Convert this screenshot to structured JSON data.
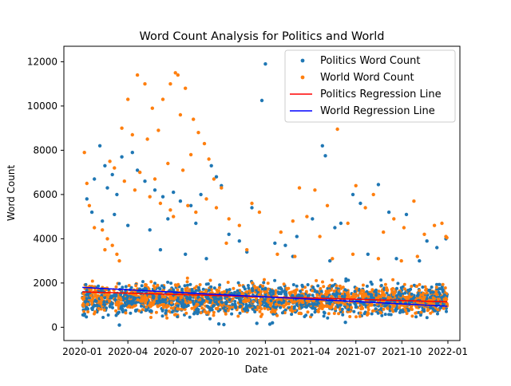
{
  "chart_data": {
    "type": "scatter",
    "title": "Word Count Analysis for Politics and World",
    "xlabel": "Date",
    "ylabel": "Word Count",
    "x_range": [
      "2019-11-25",
      "2022-01-25"
    ],
    "ylim": [
      -600,
      12700
    ],
    "x_tick_labels": [
      "2020-01",
      "2020-04",
      "2020-07",
      "2020-10",
      "2021-01",
      "2021-04",
      "2021-07",
      "2021-10",
      "2022-01"
    ],
    "x_tick_dates": [
      "2020-01-01",
      "2020-04-01",
      "2020-07-01",
      "2020-10-01",
      "2021-01-01",
      "2021-04-01",
      "2021-07-01",
      "2021-10-01",
      "2022-01-01"
    ],
    "y_ticks": [
      0,
      2000,
      4000,
      6000,
      8000,
      10000,
      12000
    ],
    "legend_position": "top-right",
    "colors": {
      "politics_points": "#1f77b4",
      "world_points": "#ff7f0e",
      "politics_regression": "#ff0000",
      "world_regression": "#0000ff"
    },
    "point_series": [
      {
        "name": "Politics Word Count",
        "color": "#1f77b4",
        "points": [
          [
            "2021-01-01",
            11900
          ],
          [
            "2020-12-25",
            10250
          ],
          [
            "2021-04-25",
            8200
          ],
          [
            "2021-05-01",
            7750
          ],
          [
            "2020-02-05",
            8200
          ],
          [
            "2020-03-20",
            7700
          ],
          [
            "2020-04-10",
            7900
          ],
          [
            "2020-02-15",
            7300
          ],
          [
            "2020-03-01",
            6900
          ],
          [
            "2020-01-25",
            6700
          ],
          [
            "2020-02-20",
            6300
          ],
          [
            "2020-03-10",
            6000
          ],
          [
            "2020-04-20",
            7100
          ],
          [
            "2020-05-05",
            6600
          ],
          [
            "2020-05-25",
            6200
          ],
          [
            "2020-06-10",
            5900
          ],
          [
            "2020-07-01",
            6100
          ],
          [
            "2020-07-15",
            5700
          ],
          [
            "2020-08-05",
            5500
          ],
          [
            "2020-08-25",
            6000
          ],
          [
            "2020-09-15",
            7300
          ],
          [
            "2020-09-25",
            6800
          ],
          [
            "2020-10-05",
            6400
          ],
          [
            "2020-01-10",
            5800
          ],
          [
            "2020-01-20",
            5200
          ],
          [
            "2020-02-10",
            4800
          ],
          [
            "2020-03-05",
            5100
          ],
          [
            "2020-04-01",
            4600
          ],
          [
            "2020-05-15",
            4400
          ],
          [
            "2020-06-20",
            4900
          ],
          [
            "2020-08-15",
            4700
          ],
          [
            "2020-10-20",
            4200
          ],
          [
            "2020-11-10",
            3900
          ],
          [
            "2020-12-05",
            5400
          ],
          [
            "2021-01-20",
            3800
          ],
          [
            "2021-02-10",
            3700
          ],
          [
            "2021-03-05",
            4100
          ],
          [
            "2021-06-01",
            4700
          ],
          [
            "2021-06-25",
            6000
          ],
          [
            "2021-07-10",
            5600
          ],
          [
            "2021-08-15",
            6450
          ],
          [
            "2021-09-05",
            5200
          ],
          [
            "2021-10-10",
            5100
          ],
          [
            "2021-11-20",
            3900
          ],
          [
            "2021-12-10",
            3600
          ],
          [
            "2021-12-28",
            4000
          ],
          [
            "2021-04-05",
            4900
          ],
          [
            "2021-05-20",
            4500
          ],
          [
            "2020-06-05",
            3500
          ],
          [
            "2020-07-25",
            3300
          ],
          [
            "2020-09-05",
            3100
          ],
          [
            "2020-11-25",
            3400
          ],
          [
            "2021-02-25",
            3200
          ],
          [
            "2021-05-10",
            3000
          ],
          [
            "2021-07-25",
            3300
          ],
          [
            "2021-09-20",
            3100
          ],
          [
            "2021-11-05",
            3000
          ],
          [
            "2020-03-15",
            100
          ],
          [
            "2020-09-30",
            150
          ],
          [
            "2020-10-10",
            120
          ],
          [
            "2021-01-10",
            140
          ],
          [
            "2021-01-15",
            200
          ],
          [
            "2021-06-10",
            220
          ],
          [
            "2020-12-15",
            180
          ]
        ]
      },
      {
        "name": "World Word Count",
        "color": "#ff7f0e",
        "points": [
          [
            "2020-04-20",
            11400
          ],
          [
            "2020-05-05",
            11000
          ],
          [
            "2020-07-05",
            11500
          ],
          [
            "2020-07-10",
            11400
          ],
          [
            "2020-06-25",
            11000
          ],
          [
            "2020-07-25",
            10800
          ],
          [
            "2020-04-01",
            10300
          ],
          [
            "2020-05-20",
            9900
          ],
          [
            "2020-06-10",
            10300
          ],
          [
            "2020-07-15",
            9600
          ],
          [
            "2020-08-10",
            9400
          ],
          [
            "2020-03-20",
            9000
          ],
          [
            "2020-04-10",
            8700
          ],
          [
            "2020-05-10",
            8500
          ],
          [
            "2020-06-01",
            8900
          ],
          [
            "2020-08-20",
            8800
          ],
          [
            "2020-09-01",
            8300
          ],
          [
            "2021-05-25",
            8950
          ],
          [
            "2020-02-25",
            7500
          ],
          [
            "2020-03-05",
            7200
          ],
          [
            "2020-04-25",
            7000
          ],
          [
            "2020-05-25",
            6700
          ],
          [
            "2020-06-20",
            7400
          ],
          [
            "2020-07-20",
            7100
          ],
          [
            "2020-08-05",
            7800
          ],
          [
            "2020-09-10",
            7600
          ],
          [
            "2020-09-20",
            6700
          ],
          [
            "2020-10-05",
            6300
          ],
          [
            "2020-03-25",
            6600
          ],
          [
            "2020-04-15",
            6200
          ],
          [
            "2020-05-15",
            5900
          ],
          [
            "2020-06-05",
            5600
          ],
          [
            "2020-06-25",
            5300
          ],
          [
            "2020-07-01",
            5000
          ],
          [
            "2020-07-30",
            5500
          ],
          [
            "2020-08-15",
            5200
          ],
          [
            "2020-09-05",
            5800
          ],
          [
            "2020-09-25",
            5400
          ],
          [
            "2020-02-10",
            4400
          ],
          [
            "2020-02-20",
            4000
          ],
          [
            "2020-03-01",
            3700
          ],
          [
            "2020-03-10",
            3300
          ],
          [
            "2020-03-15",
            3000
          ],
          [
            "2020-02-15",
            3500
          ],
          [
            "2020-01-05",
            7900
          ],
          [
            "2020-01-10",
            6500
          ],
          [
            "2020-01-15",
            5500
          ],
          [
            "2020-01-25",
            4500
          ],
          [
            "2020-10-20",
            4900
          ],
          [
            "2020-11-10",
            4600
          ],
          [
            "2020-12-05",
            5600
          ],
          [
            "2020-12-20",
            5200
          ],
          [
            "2021-02-01",
            4300
          ],
          [
            "2021-02-25",
            4800
          ],
          [
            "2021-03-10",
            6300
          ],
          [
            "2021-03-25",
            5000
          ],
          [
            "2021-04-10",
            6200
          ],
          [
            "2021-04-20",
            4100
          ],
          [
            "2021-05-05",
            5500
          ],
          [
            "2021-06-15",
            4700
          ],
          [
            "2021-07-01",
            6400
          ],
          [
            "2021-07-20",
            5400
          ],
          [
            "2021-08-05",
            6000
          ],
          [
            "2021-08-25",
            4300
          ],
          [
            "2021-09-15",
            4900
          ],
          [
            "2021-10-05",
            4500
          ],
          [
            "2021-10-25",
            5700
          ],
          [
            "2021-11-15",
            4200
          ],
          [
            "2021-12-05",
            4600
          ],
          [
            "2021-12-20",
            4700
          ],
          [
            "2021-12-28",
            4100
          ],
          [
            "2021-12-30",
            4050
          ],
          [
            "2020-10-15",
            3800
          ],
          [
            "2020-11-25",
            3500
          ],
          [
            "2021-01-25",
            3300
          ],
          [
            "2021-03-01",
            3200
          ],
          [
            "2021-05-15",
            3100
          ],
          [
            "2021-06-25",
            3300
          ],
          [
            "2021-08-15",
            3100
          ],
          [
            "2021-09-30",
            3000
          ],
          [
            "2021-11-01",
            3200
          ]
        ]
      }
    ],
    "line_series": [
      {
        "name": "Politics Regression Line",
        "color": "#ff0000",
        "x": [
          "2020-01-01",
          "2021-12-31"
        ],
        "y": [
          1600,
          1150
        ]
      },
      {
        "name": "World Regression Line",
        "color": "#0000ff",
        "x": [
          "2020-01-01",
          "2021-12-31"
        ],
        "y": [
          1800,
          950
        ]
      }
    ],
    "dense_band": {
      "x_range": [
        "2020-01-01",
        "2021-12-31"
      ],
      "y_range": [
        300,
        2200
      ],
      "note_colors": [
        "#1f77b4",
        "#ff7f0e"
      ]
    }
  }
}
